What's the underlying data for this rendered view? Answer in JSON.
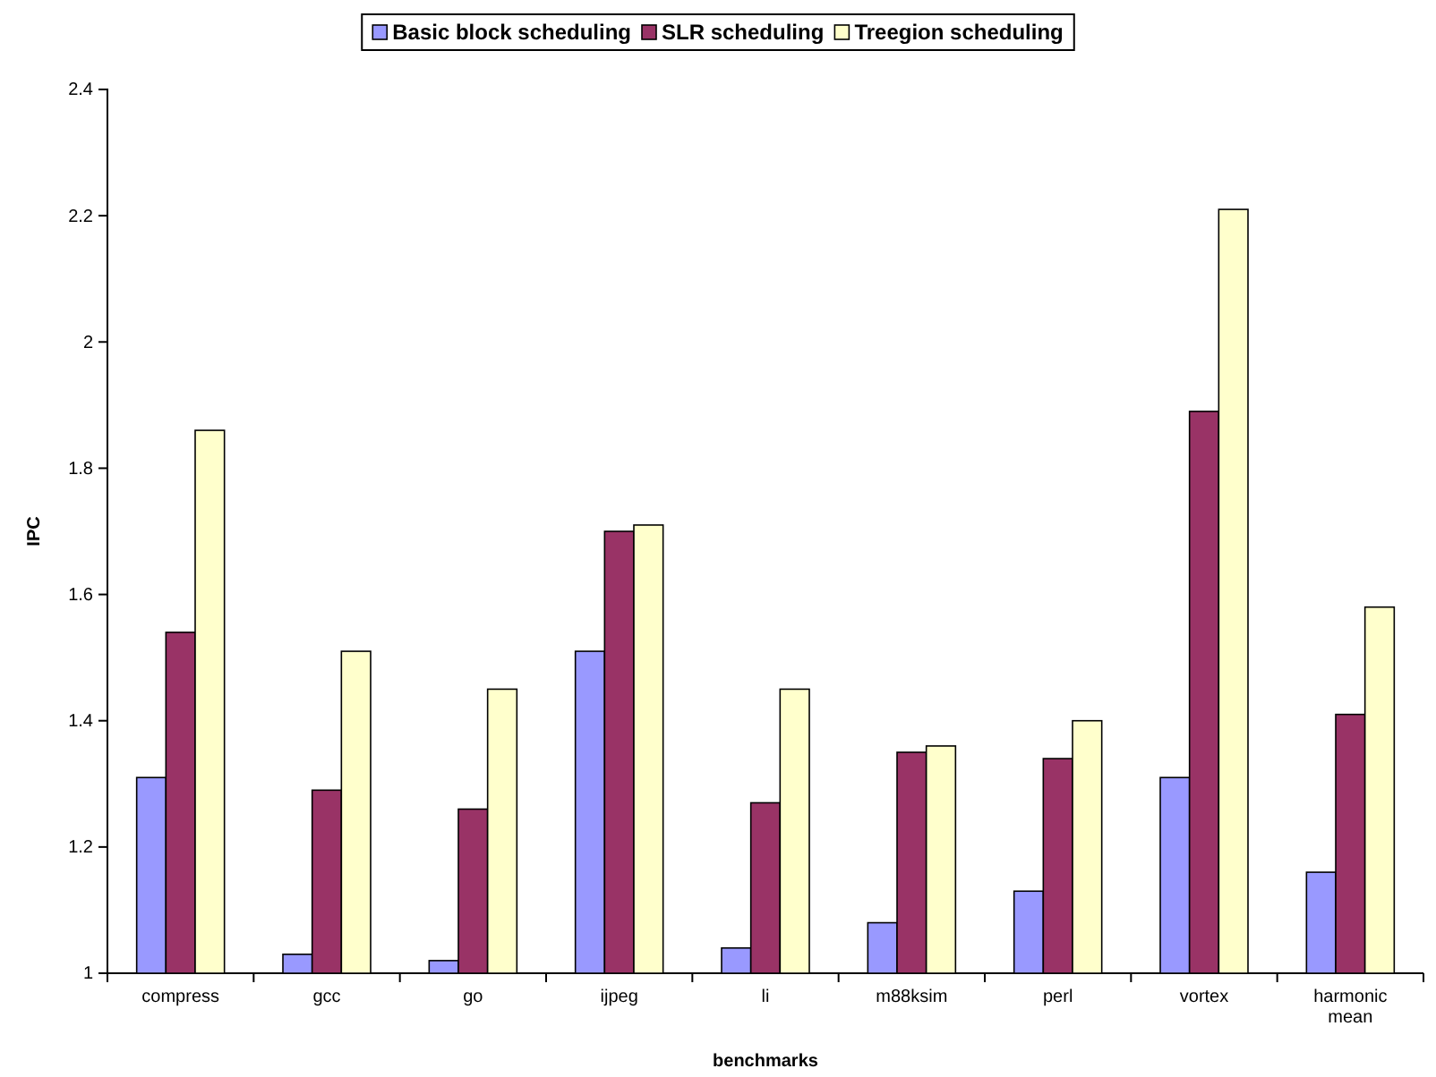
{
  "chart_data": {
    "type": "bar",
    "xlabel": "benchmarks",
    "ylabel": "IPC",
    "categories": [
      "compress",
      "gcc",
      "go",
      "ijpeg",
      "li",
      "m88ksim",
      "perl",
      "vortex",
      "harmonic mean"
    ],
    "series": [
      {
        "name": "Basic block scheduling",
        "color": "#9999ff",
        "values": [
          1.31,
          1.03,
          1.02,
          1.51,
          1.04,
          1.08,
          1.13,
          1.31,
          1.16
        ]
      },
      {
        "name": "SLR scheduling",
        "color": "#993366",
        "values": [
          1.54,
          1.29,
          1.26,
          1.7,
          1.27,
          1.35,
          1.34,
          1.89,
          1.41
        ]
      },
      {
        "name": "Treegion scheduling",
        "color": "#ffffcc",
        "values": [
          1.86,
          1.51,
          1.45,
          1.71,
          1.45,
          1.36,
          1.4,
          2.21,
          1.58
        ]
      }
    ],
    "ylim": [
      1,
      2.4
    ],
    "yticks": [
      1,
      1.2,
      1.4,
      1.6,
      1.8,
      2,
      2.2,
      2.4
    ],
    "grid": false,
    "legend": "top"
  }
}
